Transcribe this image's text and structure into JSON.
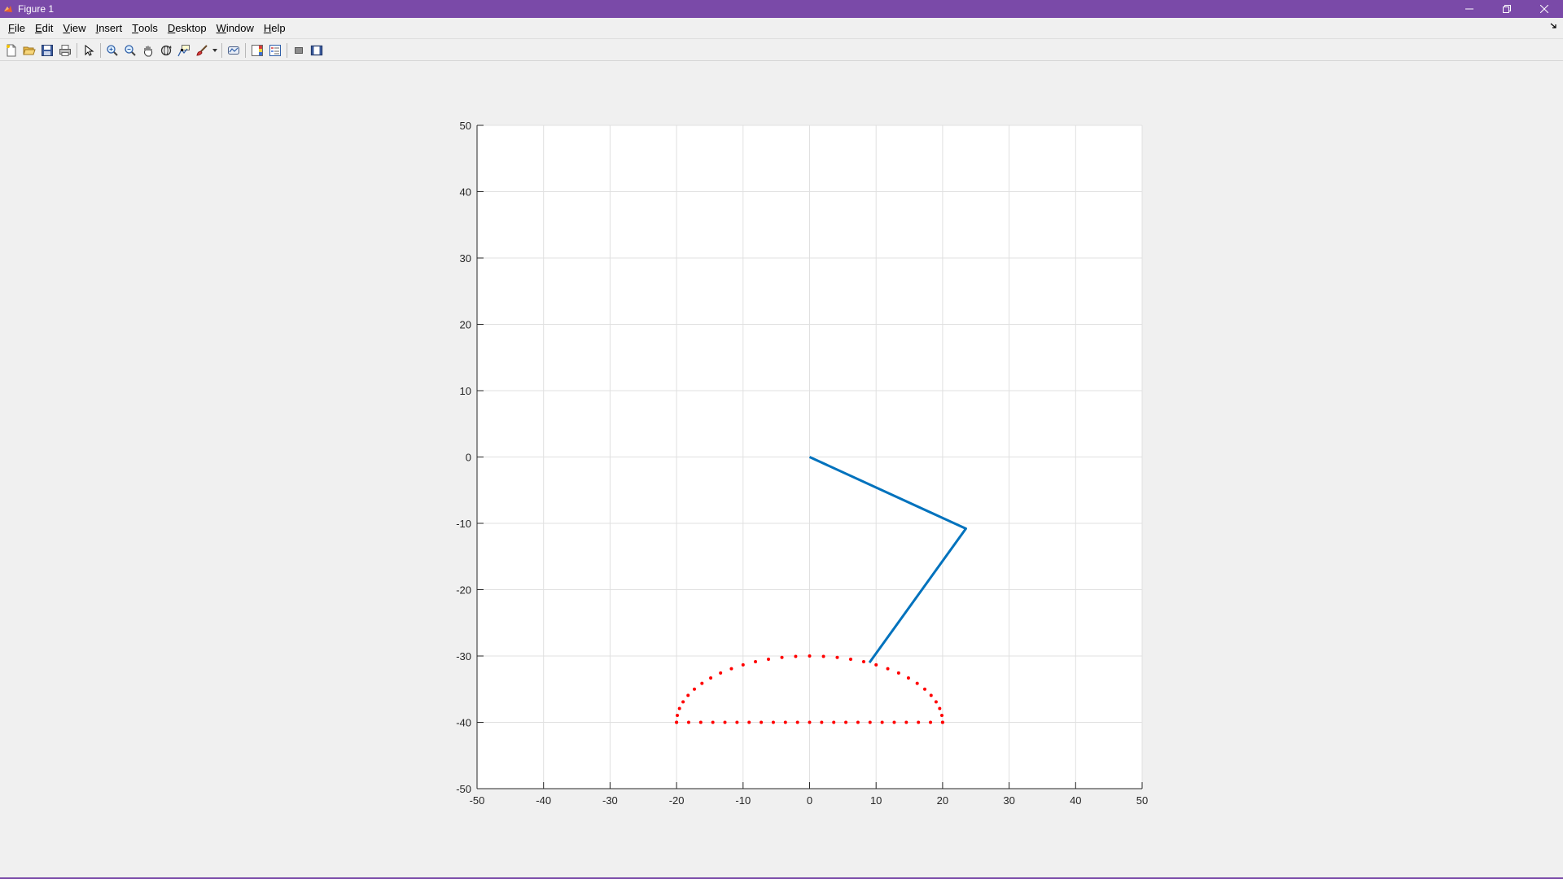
{
  "window": {
    "title": "Figure 1",
    "titlebar_color": "#7a4aa8",
    "controls": [
      "minimize-icon",
      "restore-icon",
      "close-icon"
    ]
  },
  "menubar": {
    "items": [
      {
        "pre": "",
        "acc": "F",
        "post": "ile"
      },
      {
        "pre": "",
        "acc": "E",
        "post": "dit"
      },
      {
        "pre": "",
        "acc": "V",
        "post": "iew"
      },
      {
        "pre": "",
        "acc": "I",
        "post": "nsert"
      },
      {
        "pre": "",
        "acc": "T",
        "post": "ools"
      },
      {
        "pre": "",
        "acc": "D",
        "post": "esktop"
      },
      {
        "pre": "",
        "acc": "W",
        "post": "indow"
      },
      {
        "pre": "",
        "acc": "H",
        "post": "elp"
      }
    ]
  },
  "toolbar": {
    "icons": [
      "new-figure-icon",
      "open-file-icon",
      "save-icon",
      "print-icon",
      "edit-plot-arrow-icon",
      "zoom-in-icon",
      "zoom-out-icon",
      "pan-hand-icon",
      "rotate-3d-icon",
      "data-cursor-icon",
      "brush-icon",
      "link-plot-icon",
      "colorbar-icon",
      "legend-icon",
      "hide-plot-tools-icon",
      "show-plot-tools-icon"
    ]
  },
  "chart_data": {
    "type": "line",
    "title": "",
    "xlabel": "",
    "ylabel": "",
    "xlim": [
      -50,
      50
    ],
    "ylim": [
      -50,
      50
    ],
    "xticks": [
      -50,
      -40,
      -30,
      -20,
      -10,
      0,
      10,
      20,
      30,
      40,
      50
    ],
    "yticks": [
      -50,
      -40,
      -30,
      -20,
      -10,
      0,
      10,
      20,
      30,
      40,
      50
    ],
    "grid": true,
    "colors": {
      "link": "#0072bd",
      "trace": "#ff0000",
      "grid": "#e0e0e0",
      "axes": "#262626"
    },
    "series": [
      {
        "style": "line",
        "x": [
          0,
          23.5,
          9
        ],
        "y": [
          0,
          -10.8,
          -31
        ]
      },
      {
        "style": "dots",
        "upper_arc": {
          "center": [
            0,
            -40
          ],
          "radius_x": 20,
          "radius_y": 10,
          "points": 31
        },
        "lower_segment": {
          "x_from": -20,
          "x_to": 20,
          "y": -40,
          "points": 23
        }
      }
    ]
  }
}
